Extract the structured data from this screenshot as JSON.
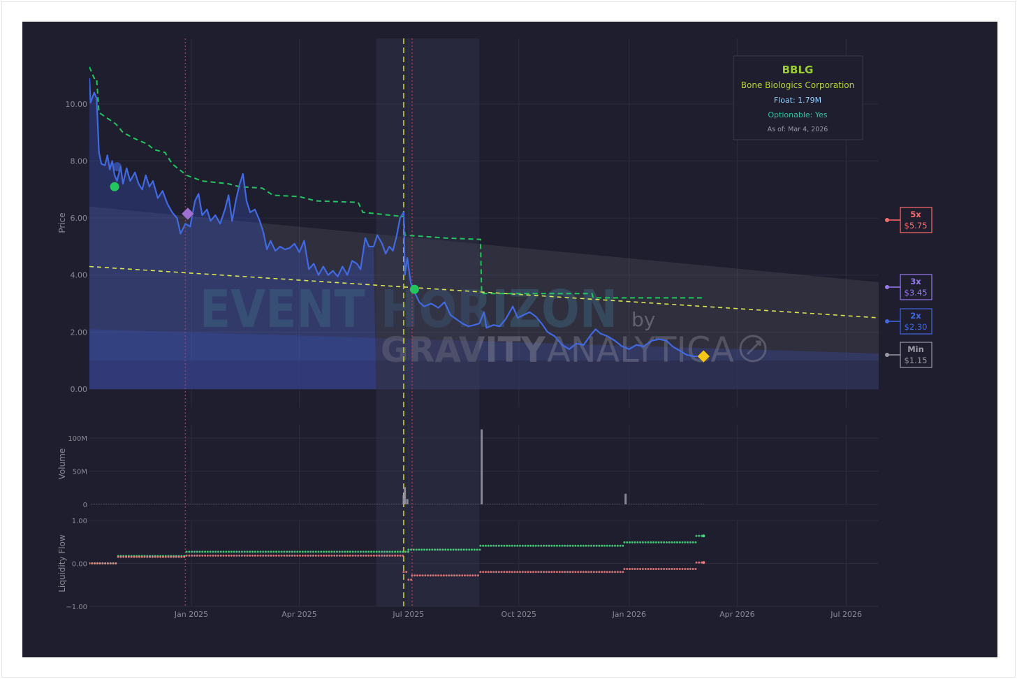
{
  "colors": {
    "background": "#1e1e2e",
    "grid": "#2c2c3e",
    "price": "#4169e1",
    "resistance": "#22c55e",
    "trend": "#d9e650",
    "event_line": "#b5c43a",
    "red_line": "#d03050",
    "level_5x": "#ff6b6b",
    "level_3x": "#9b7cf0",
    "level_2x": "#4169e1",
    "level_min": "#9a9aa6",
    "inflow": "#4ade80",
    "outflow": "#f08080",
    "marker_current": "#f5c518",
    "marker_purple": "#a070d0",
    "marker_green": "#22c55e"
  },
  "info_box": {
    "ticker": "BBLG",
    "company": "Bone Biologics Corporation",
    "float": "Float: 1.79M",
    "optionable": "Optionable: Yes",
    "as_of": "As of: Mar 4, 2026"
  },
  "watermark": {
    "line1": "EVENT HORIZON",
    "by": "by",
    "brand_bold": "GRAVITY",
    "brand_light": "ANALYTICA"
  },
  "level_labels": [
    {
      "mult": "5x",
      "price": "$5.75",
      "value": 5.75,
      "color_key": "level_5x"
    },
    {
      "mult": "3x",
      "price": "$3.45",
      "value": 3.45,
      "color_key": "level_3x"
    },
    {
      "mult": "2x",
      "price": "$2.30",
      "value": 2.3,
      "color_key": "level_2x"
    },
    {
      "mult": "Min",
      "price": "$1.15",
      "value": 1.15,
      "color_key": "level_min"
    }
  ],
  "chart_data": [
    {
      "type": "line",
      "panel": "price",
      "ylabel": "Price",
      "ylim": [
        0,
        12.3
      ],
      "yticks": [
        0,
        2,
        4,
        6,
        8,
        10
      ],
      "ytick_labels": [
        "0.00",
        "2.00",
        "4.00",
        "6.00",
        "8.00",
        "10.00"
      ],
      "xaxis": {
        "type": "date",
        "range": [
          "2024-10-08",
          "2026-07-28"
        ],
        "ticks": [
          "2025-01-01",
          "2025-04-01",
          "2025-07-01",
          "2025-10-01",
          "2026-01-01",
          "2026-04-01",
          "2026-07-01"
        ],
        "tick_labels": [
          "Jan 2025",
          "Apr 2025",
          "Jul 2025",
          "Oct 2025",
          "Jan 2026",
          "Apr 2026",
          "Jul 2026"
        ]
      },
      "grid": true,
      "series": [
        {
          "role": "price",
          "points": [
            [
              "2024-10-08",
              10.9
            ],
            [
              "2024-10-09",
              10.05
            ],
            [
              "2024-10-12",
              10.4
            ],
            [
              "2024-10-14",
              10.2
            ],
            [
              "2024-10-16",
              8.3
            ],
            [
              "2024-10-18",
              7.9
            ],
            [
              "2024-10-21",
              7.85
            ],
            [
              "2024-10-23",
              8.2
            ],
            [
              "2024-10-25",
              7.7
            ],
            [
              "2024-10-27",
              8.0
            ],
            [
              "2024-10-29",
              7.5
            ],
            [
              "2024-10-31",
              7.3
            ],
            [
              "2024-11-03",
              7.8
            ],
            [
              "2024-11-05",
              7.2
            ],
            [
              "2024-11-08",
              7.75
            ],
            [
              "2024-11-11",
              7.3
            ],
            [
              "2024-11-15",
              7.6
            ],
            [
              "2024-11-18",
              7.2
            ],
            [
              "2024-11-21",
              7.0
            ],
            [
              "2024-11-24",
              7.5
            ],
            [
              "2024-11-27",
              7.1
            ],
            [
              "2024-11-30",
              7.3
            ],
            [
              "2024-12-04",
              6.7
            ],
            [
              "2024-12-08",
              6.95
            ],
            [
              "2024-12-12",
              6.5
            ],
            [
              "2024-12-16",
              6.2
            ],
            [
              "2024-12-20",
              6.0
            ],
            [
              "2024-12-23",
              5.45
            ],
            [
              "2024-12-27",
              5.8
            ],
            [
              "2024-12-31",
              5.7
            ],
            [
              "2025-01-04",
              6.6
            ],
            [
              "2025-01-07",
              6.85
            ],
            [
              "2025-01-10",
              6.1
            ],
            [
              "2025-01-14",
              6.3
            ],
            [
              "2025-01-17",
              5.9
            ],
            [
              "2025-01-21",
              6.1
            ],
            [
              "2025-01-25",
              5.8
            ],
            [
              "2025-01-29",
              6.3
            ],
            [
              "2025-02-01",
              6.8
            ],
            [
              "2025-02-04",
              5.9
            ],
            [
              "2025-02-07",
              6.6
            ],
            [
              "2025-02-10",
              7.15
            ],
            [
              "2025-02-13",
              7.55
            ],
            [
              "2025-02-16",
              6.6
            ],
            [
              "2025-02-19",
              6.2
            ],
            [
              "2025-02-23",
              6.3
            ],
            [
              "2025-02-27",
              5.9
            ],
            [
              "2025-03-02",
              5.5
            ],
            [
              "2025-03-05",
              4.9
            ],
            [
              "2025-03-08",
              5.2
            ],
            [
              "2025-03-12",
              4.85
            ],
            [
              "2025-03-16",
              5.0
            ],
            [
              "2025-03-20",
              4.9
            ],
            [
              "2025-03-24",
              4.95
            ],
            [
              "2025-03-28",
              5.1
            ],
            [
              "2025-04-01",
              4.8
            ],
            [
              "2025-04-05",
              5.2
            ],
            [
              "2025-04-09",
              4.2
            ],
            [
              "2025-04-13",
              4.4
            ],
            [
              "2025-04-17",
              4.0
            ],
            [
              "2025-04-21",
              4.3
            ],
            [
              "2025-04-25",
              4.0
            ],
            [
              "2025-04-29",
              4.15
            ],
            [
              "2025-05-03",
              3.95
            ],
            [
              "2025-05-07",
              4.3
            ],
            [
              "2025-05-11",
              4.0
            ],
            [
              "2025-05-15",
              4.5
            ],
            [
              "2025-05-19",
              4.4
            ],
            [
              "2025-05-22",
              4.2
            ],
            [
              "2025-05-26",
              5.3
            ],
            [
              "2025-05-29",
              5.0
            ],
            [
              "2025-06-02",
              5.0
            ],
            [
              "2025-06-05",
              5.4
            ],
            [
              "2025-06-09",
              5.1
            ],
            [
              "2025-06-12",
              4.75
            ],
            [
              "2025-06-15",
              5.0
            ],
            [
              "2025-06-18",
              4.85
            ],
            [
              "2025-06-21",
              5.35
            ],
            [
              "2025-06-24",
              6.0
            ],
            [
              "2025-06-27",
              6.2
            ],
            [
              "2025-06-28",
              4.0
            ],
            [
              "2025-06-30",
              4.6
            ],
            [
              "2025-07-03",
              3.7
            ],
            [
              "2025-07-06",
              3.4
            ],
            [
              "2025-07-10",
              3.05
            ],
            [
              "2025-07-14",
              2.9
            ],
            [
              "2025-07-20",
              3.0
            ],
            [
              "2025-07-26",
              2.85
            ],
            [
              "2025-07-31",
              3.05
            ],
            [
              "2025-08-05",
              2.6
            ],
            [
              "2025-08-10",
              2.45
            ],
            [
              "2025-08-15",
              2.3
            ],
            [
              "2025-08-20",
              2.2
            ],
            [
              "2025-08-25",
              2.25
            ],
            [
              "2025-08-29",
              2.3
            ],
            [
              "2025-09-02",
              2.7
            ],
            [
              "2025-09-04",
              2.15
            ],
            [
              "2025-09-10",
              2.25
            ],
            [
              "2025-09-15",
              2.2
            ],
            [
              "2025-09-20",
              2.45
            ],
            [
              "2025-09-26",
              2.9
            ],
            [
              "2025-09-30",
              2.5
            ],
            [
              "2025-10-05",
              2.6
            ],
            [
              "2025-10-10",
              2.7
            ],
            [
              "2025-10-15",
              2.55
            ],
            [
              "2025-10-20",
              2.3
            ],
            [
              "2025-10-25",
              2.0
            ],
            [
              "2025-10-31",
              1.85
            ],
            [
              "2025-11-06",
              1.55
            ],
            [
              "2025-11-12",
              1.4
            ],
            [
              "2025-11-18",
              1.6
            ],
            [
              "2025-11-24",
              1.55
            ],
            [
              "2025-11-30",
              1.9
            ],
            [
              "2025-12-04",
              2.1
            ],
            [
              "2025-12-08",
              1.95
            ],
            [
              "2025-12-14",
              1.85
            ],
            [
              "2025-12-20",
              1.7
            ],
            [
              "2025-12-26",
              1.5
            ],
            [
              "2026-01-01",
              1.4
            ],
            [
              "2026-01-07",
              1.55
            ],
            [
              "2026-01-13",
              1.5
            ],
            [
              "2026-01-20",
              1.7
            ],
            [
              "2026-01-26",
              1.75
            ],
            [
              "2026-02-01",
              1.7
            ],
            [
              "2026-02-06",
              1.5
            ],
            [
              "2026-02-12",
              1.35
            ],
            [
              "2026-02-18",
              1.2
            ],
            [
              "2026-02-24",
              1.15
            ],
            [
              "2026-03-04",
              1.15
            ]
          ]
        },
        {
          "role": "resistance",
          "style": "dashed",
          "points": [
            [
              "2024-10-08",
              11.3
            ],
            [
              "2024-10-12",
              10.9
            ],
            [
              "2024-10-14",
              10.9
            ],
            [
              "2024-10-16",
              9.7
            ],
            [
              "2024-10-23",
              9.5
            ],
            [
              "2024-10-30",
              9.3
            ],
            [
              "2024-11-05",
              9.0
            ],
            [
              "2024-11-14",
              8.8
            ],
            [
              "2024-11-25",
              8.6
            ],
            [
              "2024-12-01",
              8.4
            ],
            [
              "2024-12-10",
              8.3
            ],
            [
              "2024-12-16",
              7.9
            ],
            [
              "2024-12-28",
              7.5
            ],
            [
              "2025-01-10",
              7.3
            ],
            [
              "2025-02-01",
              7.2
            ],
            [
              "2025-02-10",
              7.1
            ],
            [
              "2025-03-01",
              7.05
            ],
            [
              "2025-03-10",
              6.8
            ],
            [
              "2025-04-01",
              6.75
            ],
            [
              "2025-04-15",
              6.6
            ],
            [
              "2025-05-20",
              6.55
            ],
            [
              "2025-05-24",
              6.2
            ],
            [
              "2025-06-27",
              6.05
            ],
            [
              "2025-06-28",
              5.4
            ],
            [
              "2025-08-01",
              5.3
            ],
            [
              "2025-08-30",
              5.25
            ],
            [
              "2025-08-31",
              3.35
            ],
            [
              "2025-12-01",
              3.35
            ],
            [
              "2025-12-02",
              3.2
            ],
            [
              "2026-03-04",
              3.2
            ]
          ]
        },
        {
          "role": "trend",
          "style": "dashed",
          "points": [
            [
              "2024-10-08",
              4.3
            ],
            [
              "2026-07-28",
              2.5
            ]
          ]
        }
      ],
      "bands": [
        {
          "role": "5x",
          "start": [
            "2024-10-08",
            6.4
          ],
          "end": [
            "2026-07-28",
            3.75
          ],
          "bottom": 0
        },
        {
          "role": "2x",
          "start": [
            "2024-10-08",
            2.1
          ],
          "end": [
            "2026-07-28",
            1.25
          ],
          "bottom": 0
        },
        {
          "role": "min",
          "start": [
            "2024-10-08",
            1.0
          ],
          "end": [
            "2026-07-28",
            1.0
          ],
          "bottom": 0
        }
      ],
      "shaded_range": {
        "x": [
          "2025-06-04",
          "2025-08-29"
        ]
      },
      "vlines": [
        {
          "x": "2024-12-27",
          "style": "dotted",
          "color_key": "red_line",
          "panels": "all"
        },
        {
          "x": "2025-06-27",
          "style": "dashed",
          "color_key": "event_line",
          "panels": "all"
        },
        {
          "x": "2025-07-04",
          "style": "dotted",
          "color_key": "red_line",
          "panels": "all"
        }
      ],
      "markers": [
        {
          "x": "2024-10-29",
          "y": 7.1,
          "shape": "circle",
          "color_key": "marker_green"
        },
        {
          "x": "2024-10-31",
          "y": 7.8,
          "shape": "circle",
          "color_key": "price"
        },
        {
          "x": "2024-12-29",
          "y": 6.15,
          "shape": "diamond",
          "color_key": "marker_purple"
        },
        {
          "x": "2025-07-06",
          "y": 3.5,
          "shape": "circle",
          "color_key": "marker_green"
        },
        {
          "x": "2026-03-04",
          "y": 1.15,
          "shape": "diamond",
          "color_key": "marker_current"
        }
      ]
    },
    {
      "type": "bar",
      "panel": "volume",
      "ylabel": "Volume",
      "ylim": [
        0,
        120
      ],
      "yticks": [
        0,
        50,
        100
      ],
      "ytick_labels": [
        "0",
        "50M",
        "100M"
      ],
      "unit": "M",
      "x": [
        "2025-06-27",
        "2025-06-28",
        "2025-06-30",
        "2025-08-31",
        "2025-12-29"
      ],
      "values": [
        14,
        26,
        8,
        113,
        16
      ],
      "baseline": 0.6
    },
    {
      "type": "scatter",
      "panel": "liquidity",
      "ylabel": "Liquidity Flow",
      "ylim": [
        -1,
        1
      ],
      "yticks": [
        -1,
        0,
        1
      ],
      "ytick_labels": [
        "−1.00",
        "0.00",
        "1.00"
      ],
      "series": [
        {
          "role": "inflow",
          "steps": [
            [
              "2024-10-08",
              0.0
            ],
            [
              "2024-11-01",
              0.17
            ],
            [
              "2024-12-28",
              0.27
            ],
            [
              "2025-07-01",
              0.32
            ],
            [
              "2025-08-30",
              0.41
            ],
            [
              "2025-12-28",
              0.49
            ],
            [
              "2026-02-26",
              0.64
            ],
            [
              "2026-03-04",
              0.64
            ]
          ]
        },
        {
          "role": "outflow",
          "steps": [
            [
              "2024-10-08",
              0.0
            ],
            [
              "2024-11-01",
              0.15
            ],
            [
              "2024-12-28",
              0.18
            ],
            [
              "2025-06-27",
              -0.2
            ],
            [
              "2025-07-01",
              -0.38
            ],
            [
              "2025-07-04",
              -0.28
            ],
            [
              "2025-08-30",
              -0.2
            ],
            [
              "2025-12-28",
              -0.13
            ],
            [
              "2026-02-26",
              0.02
            ],
            [
              "2026-03-04",
              0.02
            ]
          ]
        }
      ]
    }
  ]
}
